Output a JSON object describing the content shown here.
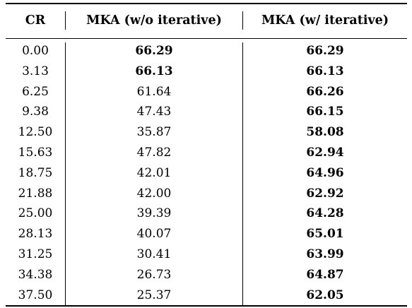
{
  "table": {
    "headers": [
      "CR",
      "MKA (w/o iterative)",
      "MKA (w/ iterative)"
    ],
    "rows": [
      {
        "cr": "0.00",
        "wo": "66.29",
        "w": "66.29",
        "wo_bold": true,
        "w_bold": true
      },
      {
        "cr": "3.13",
        "wo": "66.13",
        "w": "66.13",
        "wo_bold": true,
        "w_bold": true
      },
      {
        "cr": "6.25",
        "wo": "61.64",
        "w": "66.26",
        "wo_bold": false,
        "w_bold": true
      },
      {
        "cr": "9.38",
        "wo": "47.43",
        "w": "66.15",
        "wo_bold": false,
        "w_bold": true
      },
      {
        "cr": "12.50",
        "wo": "35.87",
        "w": "58.08",
        "wo_bold": false,
        "w_bold": true
      },
      {
        "cr": "15.63",
        "wo": "47.82",
        "w": "62.94",
        "wo_bold": false,
        "w_bold": true
      },
      {
        "cr": "18.75",
        "wo": "42.01",
        "w": "64.96",
        "wo_bold": false,
        "w_bold": true
      },
      {
        "cr": "21.88",
        "wo": "42.00",
        "w": "62.92",
        "wo_bold": false,
        "w_bold": true
      },
      {
        "cr": "25.00",
        "wo": "39.39",
        "w": "64.28",
        "wo_bold": false,
        "w_bold": true
      },
      {
        "cr": "28.13",
        "wo": "40.07",
        "w": "65.01",
        "wo_bold": false,
        "w_bold": true
      },
      {
        "cr": "31.25",
        "wo": "30.41",
        "w": "63.99",
        "wo_bold": false,
        "w_bold": true
      },
      {
        "cr": "34.38",
        "wo": "26.73",
        "w": "64.87",
        "wo_bold": false,
        "w_bold": true
      },
      {
        "cr": "37.50",
        "wo": "25.37",
        "w": "62.05",
        "wo_bold": false,
        "w_bold": true
      }
    ]
  }
}
